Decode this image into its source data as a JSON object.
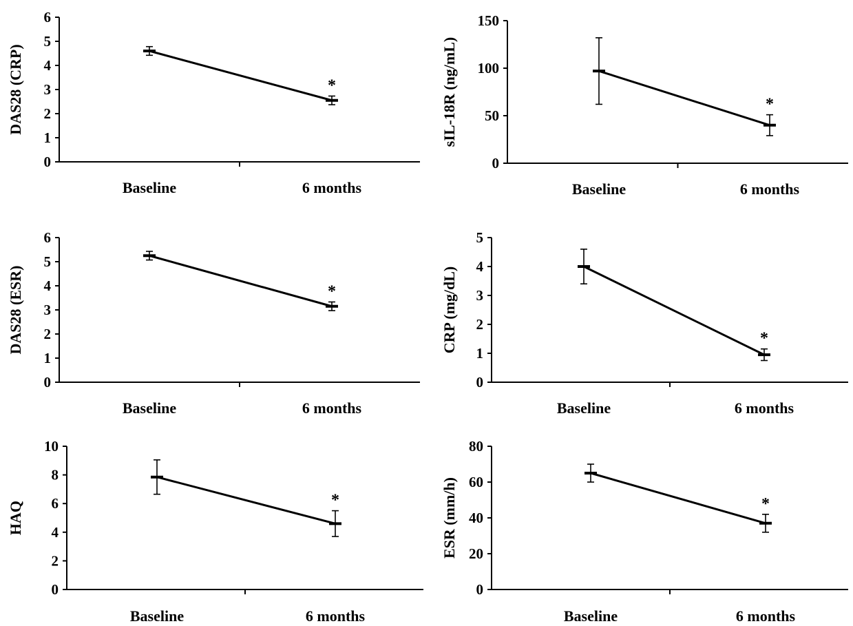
{
  "chart_data": [
    {
      "type": "line",
      "ylabel": "DAS28 (CRP)",
      "categories": [
        "Baseline",
        "6 months"
      ],
      "values": [
        4.6,
        2.55
      ],
      "error": [
        0.18,
        0.18
      ],
      "ylim": [
        0,
        6
      ],
      "yticks": [
        0,
        1,
        2,
        3,
        4,
        5,
        6
      ],
      "annotations": [
        {
          "category": "6 months",
          "text": "*"
        }
      ]
    },
    {
      "type": "line",
      "ylabel": "sIL-18R (ng/mL)",
      "categories": [
        "Baseline",
        "6 months"
      ],
      "values": [
        97,
        40
      ],
      "error": [
        35,
        11
      ],
      "ylim": [
        0,
        150
      ],
      "yticks": [
        0,
        50,
        100,
        150
      ],
      "annotations": [
        {
          "category": "6 months",
          "text": "*"
        }
      ]
    },
    {
      "type": "line",
      "ylabel": "DAS28 (ESR)",
      "categories": [
        "Baseline",
        "6 months"
      ],
      "values": [
        5.25,
        3.15
      ],
      "error": [
        0.18,
        0.18
      ],
      "ylim": [
        0,
        6
      ],
      "yticks": [
        0,
        1,
        2,
        3,
        4,
        5,
        6
      ],
      "annotations": [
        {
          "category": "6 months",
          "text": "*"
        }
      ]
    },
    {
      "type": "line",
      "ylabel": "CRP (mg/dL)",
      "categories": [
        "Baseline",
        "6 months"
      ],
      "values": [
        4.0,
        0.95
      ],
      "error": [
        0.6,
        0.2
      ],
      "ylim": [
        0,
        5
      ],
      "yticks": [
        0,
        1,
        2,
        3,
        4,
        5
      ],
      "annotations": [
        {
          "category": "6 months",
          "text": "*"
        }
      ]
    },
    {
      "type": "line",
      "ylabel": "HAQ",
      "categories": [
        "Baseline",
        "6 months"
      ],
      "values": [
        7.85,
        4.6
      ],
      "error": [
        1.2,
        0.9
      ],
      "ylim": [
        0,
        10
      ],
      "yticks": [
        0,
        2,
        4,
        6,
        8,
        10
      ],
      "annotations": [
        {
          "category": "6 months",
          "text": "*"
        }
      ]
    },
    {
      "type": "line",
      "ylabel": "ESR (mm/h)",
      "categories": [
        "Baseline",
        "6 months"
      ],
      "values": [
        65,
        37
      ],
      "error": [
        5,
        5
      ],
      "ylim": [
        0,
        80
      ],
      "yticks": [
        0,
        20,
        40,
        60,
        80
      ],
      "annotations": [
        {
          "category": "6 months",
          "text": "*"
        }
      ]
    }
  ]
}
